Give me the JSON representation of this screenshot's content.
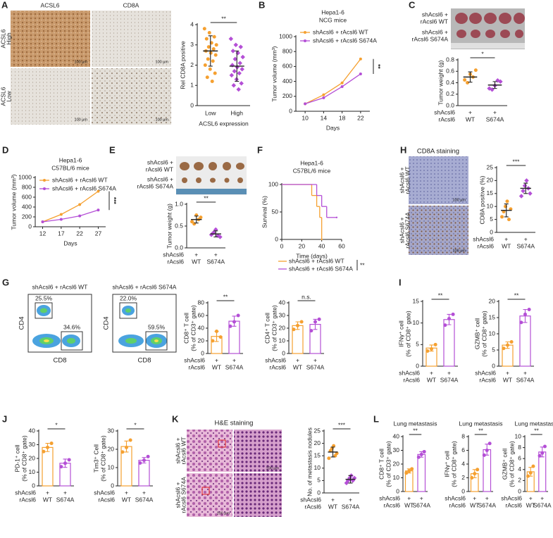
{
  "panel_letters": [
    "A",
    "B",
    "C",
    "D",
    "E",
    "F",
    "H",
    "G",
    "I",
    "J",
    "K",
    "L"
  ],
  "images": [
    {
      "col_labels": [
        "ACSL6",
        "CD8A"
      ],
      "row_labels": [
        [
          "ACSL6",
          "High"
        ],
        [
          "ACSL6",
          "Low"
        ]
      ],
      "scale": "100 μm"
    },
    {
      "row_labels": [
        [
          "shAcsl6 +",
          "rAcsl6 WT"
        ],
        [
          "shAcsl6 +",
          "rAcsl6 S674A"
        ]
      ]
    },
    {
      "row_labels": [
        [
          "shAcsl6 +",
          "rAcsl6 WT"
        ],
        [
          "shAcsl6 +",
          "rAcsl6 S674A"
        ]
      ]
    },
    {
      "title": "CD8A staining",
      "row_labels": [
        [
          "shAcsl6 +",
          "rAcsl6 WT"
        ],
        [
          "shAcsl6 +",
          "rAcsl6 S674A"
        ]
      ],
      "scale": "100 μm"
    },
    {
      "col_labels": [
        "shAcsl6 + rAcsl6 WT",
        "shAcsl6 + rAcsl6 S674A"
      ],
      "ylabel": "CD4",
      "xlabel": "CD8",
      "gates": [
        [
          "25.5%",
          "34.6%"
        ],
        [
          "22.0%",
          "59.5%"
        ]
      ]
    },
    {
      "title": "H&E staining",
      "row_labels": [
        [
          "shAcsl6 +",
          "rAcsl6 WT"
        ],
        [
          "shAcsl6 +",
          "rAcsl6 S674A"
        ]
      ],
      "scale": "100 μm"
    }
  ],
  "chart_data": [
    {
      "type": "dot",
      "ylabel": [
        "Rel CD8A positive"
      ],
      "xlabel": "ACSL6 expression",
      "categories": [
        "Low",
        "High"
      ],
      "colors": [
        "#f5a030",
        "#b44fd6"
      ],
      "values": [
        2.7,
        1.95
      ],
      "errors": [
        0.75,
        0.75
      ],
      "points": [
        [
          3.8,
          3.6,
          3.4,
          3.3,
          3.1,
          3.0,
          2.9,
          2.8,
          2.7,
          2.6,
          2.5,
          2.3,
          2.2,
          2.0,
          1.8,
          1.6,
          1.4,
          1.2
        ],
        [
          3.3,
          3.0,
          2.9,
          2.7,
          2.6,
          2.4,
          2.3,
          2.1,
          2.0,
          1.9,
          1.8,
          1.7,
          1.6,
          1.5,
          1.3,
          1.1,
          1.0,
          0.8
        ]
      ],
      "ylim": [
        0,
        4
      ],
      "yticks": [
        0,
        1,
        2,
        3,
        4
      ],
      "significance": "**"
    },
    {
      "type": "line",
      "title": [
        "Hepa1-6",
        "NCG mice"
      ],
      "ylabel": [
        "Tumor volume (mm³)"
      ],
      "xlabel": "Days",
      "x": [
        10,
        14,
        18,
        22
      ],
      "xlim": [
        8,
        24
      ],
      "xticks": [
        10,
        14,
        18,
        22
      ],
      "series": [
        {
          "name": "shAcsl6 + rAcsl6 WT",
          "color": "#f5a030",
          "values": [
            100,
            220,
            380,
            700
          ]
        },
        {
          "name": "shAcsl6 + rAcsl6 S674A",
          "color": "#b44fd6",
          "values": [
            100,
            180,
            330,
            500
          ]
        }
      ],
      "ylim": [
        0,
        1000
      ],
      "yticks": [
        0,
        200,
        400,
        600,
        800,
        1000
      ],
      "significance": "**"
    },
    {
      "type": "dot",
      "ylabel": [
        "Tumor weight (g)"
      ],
      "categories": [
        "WT",
        "S674A"
      ],
      "row_labels": [
        "shAcsl6",
        "rAcsl6"
      ],
      "plus": "+",
      "colors": [
        "#f5a030",
        "#b44fd6"
      ],
      "values": [
        0.5,
        0.36
      ],
      "errors": [
        0.09,
        0.06
      ],
      "points": [
        [
          0.45,
          0.55,
          0.62,
          0.4,
          0.5
        ],
        [
          0.3,
          0.35,
          0.42,
          0.28,
          0.44
        ]
      ],
      "ylim": [
        0,
        0.8
      ],
      "yticks": [
        {
          "value": 0,
          "label": "0.0"
        },
        0.2,
        0.4,
        0.6,
        0.8
      ],
      "significance": "*"
    },
    {
      "type": "line",
      "title": [
        "Hepa1-6",
        "C57BL/6 mice"
      ],
      "ylabel": [
        "Tumor volume (mm³)"
      ],
      "xlabel": "Days",
      "x": [
        12,
        17,
        22,
        27
      ],
      "xlim": [
        10,
        29
      ],
      "xticks": [
        12,
        17,
        22,
        27
      ],
      "series": [
        {
          "name": "shAcsl6 + rAcsl6 WT",
          "color": "#f5a030",
          "values": [
            100,
            250,
            450,
            720
          ]
        },
        {
          "name": "shAcsl6 + rAcsl6 S674A",
          "color": "#b44fd6",
          "values": [
            100,
            150,
            220,
            340
          ]
        }
      ],
      "ylim": [
        0,
        1000
      ],
      "yticks": [
        0,
        200,
        400,
        600,
        800,
        1000
      ],
      "significance": "***"
    },
    {
      "type": "dot",
      "ylabel": [
        "Tumor weight (g)"
      ],
      "categories": [
        "WT",
        "S674A"
      ],
      "row_labels": [
        "shAcsl6",
        "rAcsl6"
      ],
      "plus": "+",
      "colors": [
        "#f5a030",
        "#b44fd6"
      ],
      "values": [
        0.65,
        0.32
      ],
      "errors": [
        0.08,
        0.07
      ],
      "points": [
        [
          0.6,
          0.75,
          0.7,
          0.55,
          0.65
        ],
        [
          0.3,
          0.42,
          0.25,
          0.35,
          0.28
        ]
      ],
      "ylim": [
        0,
        1
      ],
      "yticks": [
        {
          "value": 0,
          "label": "0.0"
        },
        0.5,
        {
          "value": 1,
          "label": "1.0"
        }
      ],
      "significance": "**"
    },
    {
      "type": "step",
      "title": [
        "Hepa1-6",
        "C57BL/6 mice"
      ],
      "ylabel": [
        "Survival (%)"
      ],
      "xlabel": "Time (days)",
      "xlim": [
        0,
        60
      ],
      "xticks": [
        0,
        20,
        40,
        60
      ],
      "ylim": [
        0,
        100
      ],
      "yticks": [
        0,
        50,
        100
      ],
      "series": [
        {
          "name": "shAcsl6 + rAcsl6 WT",
          "color": "#f5a030",
          "x": [
            0,
            30,
            35,
            38,
            40
          ],
          "values": [
            100,
            80,
            60,
            40,
            0
          ]
        },
        {
          "name": "shAcsl6 + rAcsl6 S674A",
          "color": "#b44fd6",
          "x": [
            0,
            35,
            40,
            45,
            55
          ],
          "values": [
            100,
            80,
            60,
            40,
            40
          ]
        }
      ],
      "significance": "**"
    },
    {
      "type": "dot",
      "ylabel": [
        "CD8A positive (%)"
      ],
      "categories": [
        "WT",
        "S674A"
      ],
      "row_labels": [
        "shAcsl6",
        "rAcsl6"
      ],
      "plus": "+",
      "colors": [
        "#f5a030",
        "#b44fd6"
      ],
      "values": [
        8.5,
        17
      ],
      "errors": [
        2.5,
        2
      ],
      "points": [
        [
          6,
          8,
          10,
          12,
          5,
          9
        ],
        [
          14,
          16,
          18,
          20,
          17,
          15
        ]
      ],
      "ylim": [
        0,
        25
      ],
      "yticks": [
        0,
        5,
        10,
        15,
        20,
        25
      ],
      "significance": "***"
    },
    {
      "type": "bar",
      "ylabel": [
        "CD8⁺ T cell",
        "(% of CD3⁺ gate)"
      ],
      "categories": [
        "WT",
        "S674A"
      ],
      "row_labels": [
        "shAcsl6",
        "rAcsl6"
      ],
      "plus": "+",
      "colors": [
        "#f5a030",
        "#b44fd6"
      ],
      "values": [
        27,
        51
      ],
      "errors": [
        8,
        8
      ],
      "points": [
        [
          20,
          35,
          26
        ],
        [
          43,
          50,
          60
        ]
      ],
      "ylim": [
        0,
        80
      ],
      "yticks": [
        0,
        20,
        40,
        60,
        80
      ],
      "significance": "**"
    },
    {
      "type": "bar",
      "ylabel": [
        "CD4⁺ T cell",
        "(% of CD3⁺ gate)"
      ],
      "categories": [
        "WT",
        "S674A"
      ],
      "row_labels": [
        "shAcsl6",
        "rAcsl6"
      ],
      "plus": "+",
      "colors": [
        "#f5a030",
        "#b44fd6"
      ],
      "values": [
        22,
        23
      ],
      "errors": [
        3,
        4
      ],
      "points": [
        [
          19,
          22,
          25
        ],
        [
          18,
          25,
          27
        ]
      ],
      "ylim": [
        0,
        40
      ],
      "yticks": [
        0,
        10,
        20,
        30,
        40
      ],
      "significance": "n.s."
    },
    {
      "type": "bar",
      "ylabel": [
        "IFNγ⁺ cell",
        "(% of CD8⁺ gate)"
      ],
      "categories": [
        "WT",
        "S674A"
      ],
      "row_labels": [
        "shAcsl6",
        "rAcsl6"
      ],
      "plus": "+",
      "colors": [
        "#f5a030",
        "#b44fd6"
      ],
      "values": [
        4.2,
        10.8
      ],
      "errors": [
        0.7,
        1.2
      ],
      "points": [
        [
          3.5,
          4,
          5
        ],
        [
          9.5,
          11,
          12
        ]
      ],
      "ylim": [
        0,
        15
      ],
      "yticks": [
        0,
        5,
        10,
        15
      ],
      "significance": "**"
    },
    {
      "type": "bar",
      "ylabel": [
        "GZMB⁺ cell",
        "(% of CD8⁺ gate)"
      ],
      "categories": [
        "WT",
        "S674A"
      ],
      "row_labels": [
        "shAcsl6",
        "rAcsl6"
      ],
      "plus": "+",
      "colors": [
        "#f5a030",
        "#b44fd6"
      ],
      "values": [
        6.5,
        15.5
      ],
      "errors": [
        1,
        2
      ],
      "points": [
        [
          5.5,
          6.5,
          7.5
        ],
        [
          13.5,
          16,
          17.5
        ]
      ],
      "ylim": [
        0,
        20
      ],
      "yticks": [
        0,
        5,
        10,
        15,
        20
      ],
      "significance": "**"
    },
    {
      "type": "bar",
      "ylabel": [
        "PD-1⁺ cell",
        "(% of CD8⁺ gate)"
      ],
      "categories": [
        "WT",
        "S674A"
      ],
      "row_labels": [
        "shAcsl6",
        "rAcsl6"
      ],
      "plus": "+",
      "colors": [
        "#f5a030",
        "#b44fd6"
      ],
      "values": [
        28,
        16.5
      ],
      "errors": [
        3,
        3
      ],
      "points": [
        [
          25,
          28,
          31
        ],
        [
          14,
          16.5,
          19
        ]
      ],
      "ylim": [
        0,
        40
      ],
      "yticks": [
        0,
        10,
        20,
        30,
        40
      ],
      "significance": "*"
    },
    {
      "type": "bar",
      "ylabel": [
        "Tim3⁺ Cell",
        "(% of CD8⁺ gate)"
      ],
      "categories": [
        "WT",
        "S674A"
      ],
      "row_labels": [
        "shAcsl6",
        "rAcsl6"
      ],
      "plus": "+",
      "colors": [
        "#f5a030",
        "#b44fd6"
      ],
      "values": [
        21.5,
        14
      ],
      "errors": [
        3,
        1.5
      ],
      "points": [
        [
          18.5,
          21,
          25
        ],
        [
          12.5,
          14,
          16
        ]
      ],
      "ylim": [
        0,
        30
      ],
      "yticks": [
        0,
        10,
        20,
        30
      ],
      "significance": "*"
    },
    {
      "type": "dot",
      "ylabel": [
        "No. of metastasis nodules"
      ],
      "categories": [
        "WT",
        "S674A"
      ],
      "row_labels": [
        "shAcsl6",
        "rAcsl6"
      ],
      "plus": "+",
      "colors": [
        "#f5a030",
        "#b44fd6"
      ],
      "values": [
        16.5,
        5.5
      ],
      "errors": [
        2,
        1.5
      ],
      "points": [
        [
          14,
          17,
          18,
          19,
          15,
          16
        ],
        [
          4,
          5,
          6,
          7,
          5,
          6
        ]
      ],
      "ylim": [
        0,
        25
      ],
      "yticks": [
        0,
        5,
        10,
        15,
        20,
        25
      ],
      "significance": "***"
    },
    {
      "type": "bar",
      "title": [
        "Lung metastasis"
      ],
      "ylabel": [
        "CD8⁺ T cell",
        "(% of CD3⁺ gate)"
      ],
      "categories": [
        "WT",
        "S674A"
      ],
      "row_labels": [
        "shAcsl6",
        "rAcsl6"
      ],
      "plus": "+",
      "colors": [
        "#f5a030",
        "#b44fd6"
      ],
      "values": [
        15,
        27
      ],
      "errors": [
        1.5,
        2
      ],
      "points": [
        [
          13.5,
          15,
          16.5
        ],
        [
          25,
          27,
          29
        ]
      ],
      "ylim": [
        0,
        40
      ],
      "yticks": [
        0,
        10,
        20,
        30,
        40
      ],
      "significance": "**"
    },
    {
      "type": "bar",
      "title": [
        "Lung metastasis"
      ],
      "ylabel": [
        "IFNγ⁺ cell",
        "(% of CD8⁺ gate)"
      ],
      "categories": [
        "WT",
        "S674A"
      ],
      "row_labels": [
        "shAcsl6",
        "rAcsl6"
      ],
      "plus": "+",
      "colors": [
        "#f5a030",
        "#b44fd6"
      ],
      "values": [
        2.6,
        6.1
      ],
      "errors": [
        0.6,
        0.8
      ],
      "points": [
        [
          2,
          2.6,
          3.2
        ],
        [
          5.3,
          6,
          7
        ]
      ],
      "ylim": [
        0,
        8
      ],
      "yticks": [
        0,
        2,
        4,
        6,
        8
      ],
      "significance": "**"
    },
    {
      "type": "bar",
      "title": [
        "Lung metastasis"
      ],
      "ylabel": [
        "GZMB⁺ cell",
        "(% of CD8⁺ gate)"
      ],
      "categories": [
        "WT",
        "S674A"
      ],
      "row_labels": [
        "shAcsl6",
        "rAcsl6"
      ],
      "plus": "+",
      "colors": [
        "#f5a030",
        "#b44fd6"
      ],
      "values": [
        3.6,
        7.2
      ],
      "errors": [
        0.8,
        0.9
      ],
      "points": [
        [
          2.8,
          3.4,
          4.6
        ],
        [
          6.5,
          7,
          8.2
        ]
      ],
      "ylim": [
        0,
        10
      ],
      "yticks": [
        0,
        2,
        4,
        6,
        8,
        10
      ],
      "significance": "**"
    }
  ]
}
